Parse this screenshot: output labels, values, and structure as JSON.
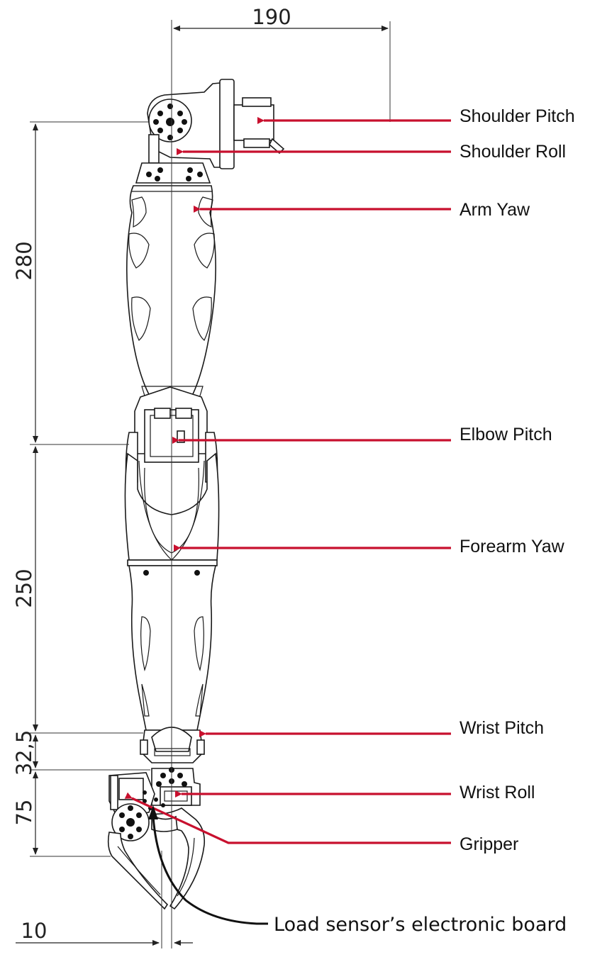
{
  "dimensions": {
    "top_width": "190",
    "upper_arm": "280",
    "forearm": "250",
    "wrist": "32,5",
    "gripper": "75",
    "bottom_offset": "10"
  },
  "labels": [
    {
      "id": "shoulder-pitch",
      "text": "Shoulder Pitch"
    },
    {
      "id": "shoulder-roll",
      "text": "Shoulder Roll"
    },
    {
      "id": "arm-yaw",
      "text": "Arm Yaw"
    },
    {
      "id": "elbow-pitch",
      "text": "Elbow Pitch"
    },
    {
      "id": "forearm-yaw",
      "text": "Forearm Yaw"
    },
    {
      "id": "wrist-pitch",
      "text": "Wrist Pitch"
    },
    {
      "id": "wrist-roll",
      "text": "Wrist Roll"
    },
    {
      "id": "gripper",
      "text": "Gripper"
    }
  ],
  "sensor_note": "Load sensor’s electronic board",
  "colors": {
    "callout": "#c8102e",
    "outline": "#1a1a1a"
  }
}
